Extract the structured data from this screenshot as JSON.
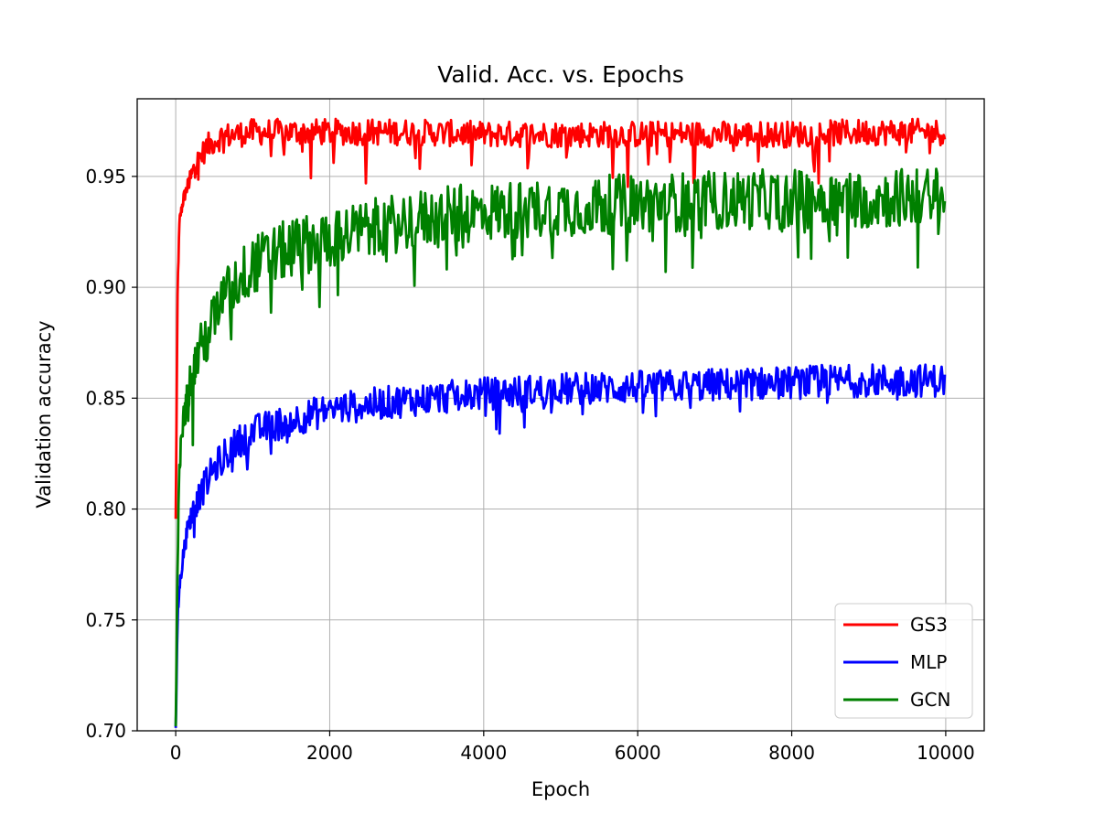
{
  "chart_data": {
    "type": "line",
    "title": "Valid. Acc. vs. Epochs",
    "xlabel": "Epoch",
    "ylabel": "Validation accuracy",
    "xlim": [
      -500,
      10500
    ],
    "ylim": [
      0.7,
      0.985
    ],
    "xticks": [
      0,
      2000,
      4000,
      6000,
      8000,
      10000
    ],
    "xtick_labels": [
      "0",
      "2000",
      "4000",
      "6000",
      "8000",
      "10000"
    ],
    "yticks": [
      0.7,
      0.75,
      0.8,
      0.85,
      0.9,
      0.95
    ],
    "ytick_labels": [
      "0.70",
      "0.75",
      "0.80",
      "0.85",
      "0.90",
      "0.95"
    ],
    "grid": true,
    "legend_position": "bottom-right",
    "colors": {
      "GS3": "#ff0000",
      "MLP": "#0000ff",
      "GCN": "#008000"
    },
    "series": [
      {
        "name": "GS3",
        "color": "#ff0000",
        "x": [
          0,
          25,
          50,
          100,
          150,
          200,
          250,
          300,
          400,
          500,
          600,
          800,
          1000,
          1500,
          2000,
          3000,
          4000,
          5000,
          6000,
          7000,
          8000,
          9000,
          10000
        ],
        "y": [
          0.795,
          0.9,
          0.93,
          0.94,
          0.945,
          0.95,
          0.955,
          0.958,
          0.963,
          0.966,
          0.968,
          0.969,
          0.97,
          0.97,
          0.97,
          0.97,
          0.969,
          0.969,
          0.969,
          0.969,
          0.969,
          0.97,
          0.97
        ],
        "noise": 0.004,
        "spike_prob": 0.05,
        "spike_depth": 0.02
      },
      {
        "name": "MLP",
        "color": "#0000ff",
        "x": [
          0,
          25,
          50,
          100,
          150,
          200,
          300,
          400,
          500,
          600,
          800,
          1000,
          1500,
          2000,
          2500,
          3000,
          4000,
          5000,
          6000,
          7000,
          8000,
          9000,
          10000
        ],
        "y": [
          0.7,
          0.75,
          0.765,
          0.78,
          0.79,
          0.797,
          0.805,
          0.812,
          0.818,
          0.823,
          0.83,
          0.835,
          0.84,
          0.845,
          0.847,
          0.849,
          0.852,
          0.854,
          0.855,
          0.856,
          0.857,
          0.858,
          0.858
        ],
        "noise": 0.005,
        "spike_prob": 0.08,
        "spike_depth": 0.015
      },
      {
        "name": "GCN",
        "color": "#008000",
        "x": [
          0,
          25,
          50,
          100,
          150,
          200,
          300,
          400,
          500,
          600,
          800,
          1000,
          1500,
          2000,
          2500,
          3000,
          4000,
          5000,
          6000,
          7000,
          8000,
          9000,
          10000
        ],
        "y": [
          0.7,
          0.78,
          0.82,
          0.84,
          0.85,
          0.86,
          0.87,
          0.878,
          0.885,
          0.893,
          0.903,
          0.91,
          0.918,
          0.922,
          0.926,
          0.93,
          0.934,
          0.936,
          0.938,
          0.939,
          0.94,
          0.94,
          0.941
        ],
        "noise": 0.009,
        "spike_prob": 0.1,
        "spike_depth": 0.03
      }
    ]
  }
}
